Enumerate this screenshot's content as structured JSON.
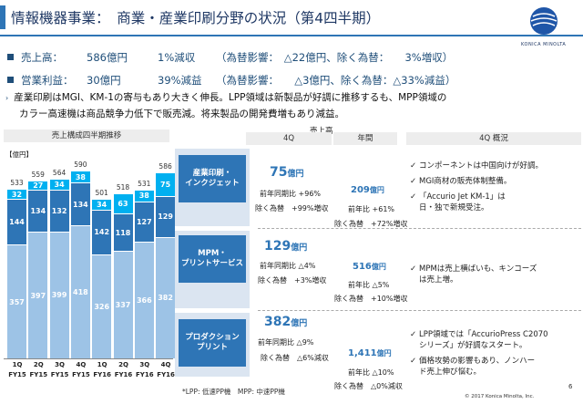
{
  "header": {
    "title": "情報機器事業：　商業・産業印刷分野の状況（第4四半期）",
    "logo_text": "KONICA MINOLTA"
  },
  "kpis": [
    {
      "label": "売上高：",
      "value": "586億円",
      "change": "1%減収",
      "fx": "（為替影響：　△22億円、除く為替：　　3%増収）"
    },
    {
      "label": "営業利益：",
      "value": "30億円",
      "change": "39%減益",
      "fx": "（為替影響：　　△3億円、除く為替：△33%減益）"
    }
  ],
  "description": [
    "産業印刷はMGI、KM-1の寄与もあり大きく伸長。LPP領域は新製品が好調に推移するも、MPP領域の",
    "カラー高速機は商品競争力低下で販売減。将来製品の開発費増もあり減益。"
  ],
  "chart_header": "売上構成四半期推移",
  "chart_data": {
    "type": "bar",
    "unit_label": "【億円】",
    "categories": [
      "1Q FY15",
      "2Q FY15",
      "3Q FY15",
      "4Q FY15",
      "1Q FY16",
      "2Q FY16",
      "3Q FY16",
      "4Q FY16"
    ],
    "x_top": [
      "1Q",
      "2Q",
      "3Q",
      "4Q",
      "1Q",
      "2Q",
      "3Q",
      "4Q"
    ],
    "x_bottom": [
      "FY15",
      "FY15",
      "FY15",
      "FY15",
      "FY16",
      "FY16",
      "FY16",
      "FY16"
    ],
    "series": [
      {
        "name": "プロダクションプリント",
        "values": [
          357,
          397,
          399,
          418,
          326,
          337,
          366,
          382
        ],
        "color": "#9dc3e6"
      },
      {
        "name": "MPM・プリントサービス",
        "values": [
          144,
          134,
          132,
          134,
          142,
          118,
          127,
          129
        ],
        "color": "#2e75b6"
      },
      {
        "name": "産業印刷・インクジェット",
        "values": [
          32,
          27,
          34,
          38,
          34,
          63,
          38,
          75
        ],
        "color": "#00b0f0"
      }
    ],
    "totals": [
      533,
      559,
      564,
      590,
      501,
      518,
      531,
      586
    ],
    "ylim": [
      0,
      620
    ]
  },
  "table_headers": {
    "sales": "売上高",
    "q4": "4Q",
    "annual": "年間",
    "summary": "4Q 概況"
  },
  "segments": [
    {
      "name": [
        "産業印刷・",
        "インクジェット"
      ],
      "q4_value": "75",
      "q4_unit": "億円",
      "q4_yoy": "前年同期比 +96%",
      "q4_fx": "除く為替　+99%増収",
      "annual_value": "209",
      "annual_unit": "億円",
      "annual_yoy": "前年比 +61%",
      "annual_fx": "除く為替　+72%増収",
      "notes": [
        "コンポーネントは中国向けが好調。",
        "MGI商材の販売体制整備。",
        "「Accurio Jet KM-1」は",
        "日・独で新規受注。"
      ]
    },
    {
      "name": [
        "MPM・",
        "プリントサービス"
      ],
      "q4_value": "129",
      "q4_unit": "億円",
      "q4_yoy": "前年同期比 △4%",
      "q4_fx": "除く為替　+3%増収",
      "annual_value": "516",
      "annual_unit": "億円",
      "annual_yoy": "前年比 △5%",
      "annual_fx": "除く為替　+10%増収",
      "notes": [
        "MPMは売上横ばいも、キンコーズ",
        "は売上増。"
      ]
    },
    {
      "name": [
        "プロダクション",
        "プリント"
      ],
      "q4_value": "382",
      "q4_unit": "億円",
      "q4_yoy": "前年同期比 △9%",
      "q4_fx": "除く為替　△6%減収",
      "annual_value": "1,411",
      "annual_unit": "億円",
      "annual_yoy": "前年比 △10%",
      "annual_fx": "除く為替　△0%減収",
      "notes": [
        "LPP領域では「AccurioPress C2070",
        "シリーズ」が好調なスタート。",
        "価格攻勢の影響もあり、ノンハー",
        "ド売上伸び悩む。"
      ]
    }
  ],
  "footnote": "*LPP: 低速PP機　MPP: 中速PP機",
  "copyright": "© 2017 Konica Minolta, Inc.",
  "page_number": "6"
}
